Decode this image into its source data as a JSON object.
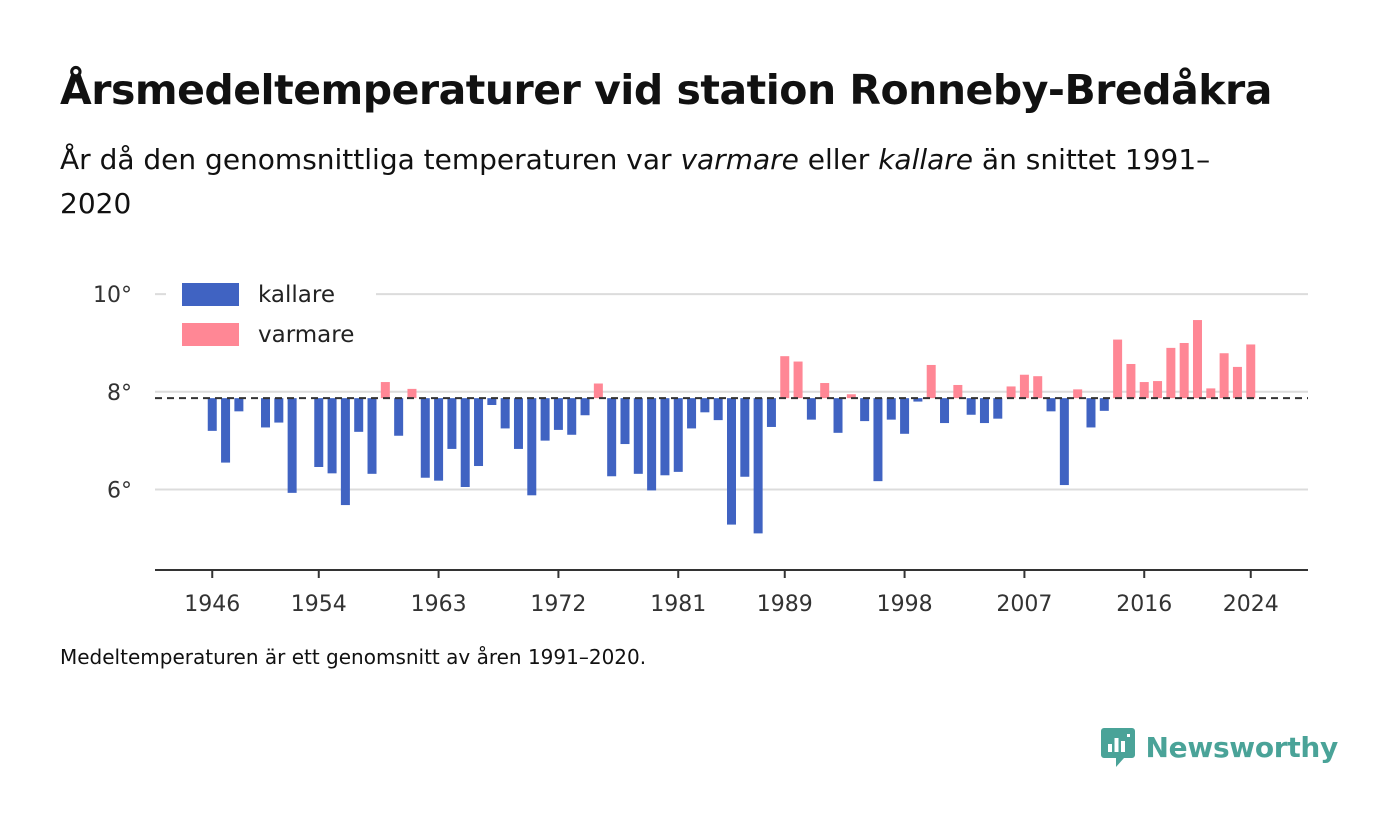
{
  "header": {
    "title": "Årsmedeltemperaturer vid station Ronneby-Bredåkra",
    "subtitle_part1": "År då den genomsnittliga temperaturen var ",
    "subtitle_em1": "varmare",
    "subtitle_part2": " eller ",
    "subtitle_em2": "kallare",
    "subtitle_part3": " än snittet 1991–2020"
  },
  "footer": {
    "note": "Medeltemperaturen är ett genomsnitt av åren 1991–2020.",
    "brand": "Newsworthy"
  },
  "colors": {
    "colder": "#4063c2",
    "warmer": "#ff8795",
    "brand": "#4aa398"
  },
  "chart_data": {
    "type": "bar",
    "baseline": 7.87,
    "ylim": [
      4.35,
      10.7
    ],
    "xlim": [
      1941.7,
      2028.3
    ],
    "y_ticks": [
      6,
      8,
      10
    ],
    "y_tick_labels": [
      "6°",
      "8°",
      "10°"
    ],
    "x_ticks": [
      1946,
      1954,
      1963,
      1972,
      1981,
      1989,
      1998,
      2007,
      2016,
      2024
    ],
    "x_tick_labels": [
      "1946",
      "1954",
      "1963",
      "1972",
      "1981",
      "1989",
      "1998",
      "2007",
      "2016",
      "2024"
    ],
    "legend": [
      {
        "key": "colder",
        "label": "kallare"
      },
      {
        "key": "warmer",
        "label": "varmare"
      }
    ],
    "legend_position": "top-left",
    "grid": true,
    "series": [
      {
        "x": [
          1946,
          1947,
          1948,
          1950,
          1951,
          1952,
          1954,
          1955,
          1956,
          1957,
          1958,
          1959,
          1960,
          1961,
          1962,
          1963,
          1964,
          1965,
          1966,
          1967,
          1968,
          1969,
          1970,
          1971,
          1972,
          1973,
          1974,
          1975,
          1976,
          1977,
          1978,
          1979,
          1980,
          1981,
          1982,
          1983,
          1984,
          1985,
          1986,
          1987,
          1988,
          1989,
          1990,
          1991,
          1992,
          1993,
          1994,
          1995,
          1996,
          1997,
          1998,
          1999,
          2000,
          2001,
          2002,
          2003,
          2004,
          2005,
          2006,
          2007,
          2008,
          2009,
          2010,
          2011,
          2012,
          2013,
          2014,
          2015,
          2016,
          2017,
          2018,
          2019,
          2020,
          2021,
          2022,
          2023,
          2024
        ],
        "values": [
          7.2,
          6.55,
          7.6,
          7.27,
          7.37,
          5.93,
          6.46,
          6.33,
          5.68,
          7.18,
          6.32,
          8.2,
          7.1,
          8.06,
          6.24,
          6.18,
          6.83,
          6.05,
          6.48,
          7.73,
          7.25,
          6.83,
          5.88,
          7.0,
          7.22,
          7.12,
          7.52,
          8.17,
          6.27,
          6.93,
          6.32,
          5.98,
          6.29,
          6.36,
          7.25,
          7.58,
          7.42,
          5.28,
          6.26,
          5.1,
          7.28,
          8.73,
          8.62,
          7.43,
          8.18,
          7.16,
          7.95,
          7.4,
          6.17,
          7.43,
          7.14,
          7.8,
          8.55,
          7.36,
          8.14,
          7.53,
          7.36,
          7.45,
          8.11,
          8.35,
          8.32,
          7.6,
          6.09,
          8.05,
          7.27,
          7.61,
          9.07,
          8.57,
          8.2,
          8.22,
          8.9,
          9.0,
          9.47,
          8.07,
          8.79,
          8.51,
          8.97
        ]
      }
    ]
  }
}
